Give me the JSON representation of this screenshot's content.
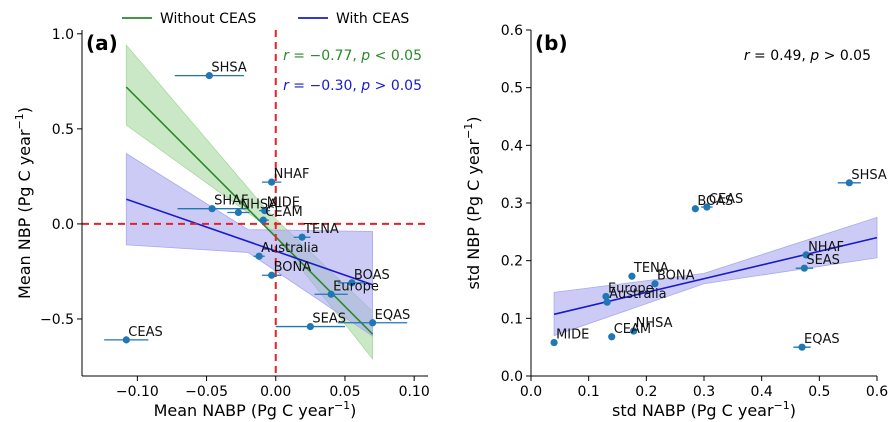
{
  "legend": {
    "items": [
      {
        "label": "Without CEAS",
        "color": "#2a8a2a"
      },
      {
        "label": "With CEAS",
        "color": "#1a1acc"
      }
    ]
  },
  "colors": {
    "point": "#1f77b4",
    "green_line": "#2a8a2a",
    "green_band": "#a8d8a0",
    "blue_line": "#1a1acc",
    "blue_band": "#a9a9f0",
    "zero_line": "#e8202a"
  },
  "chart_data": [
    {
      "type": "scatter",
      "panel_label": "(a)",
      "xlabel": "Mean NABP (Pg C year$^{-1}$)",
      "xlabel_parts": {
        "main": "Mean NABP (Pg C year",
        "sup": "−1",
        "close": ")"
      },
      "ylabel_parts": {
        "main": "Mean NBP (Pg C year",
        "sup": "−1",
        "close": ")"
      },
      "xlim": [
        -0.14,
        0.11
      ],
      "ylim": [
        -0.8,
        1.02
      ],
      "xticks": [
        -0.1,
        -0.05,
        0.0,
        0.05,
        0.1
      ],
      "xtick_labels": [
        "−0.10",
        "−0.05",
        "0.00",
        "0.05",
        "0.10"
      ],
      "yticks": [
        -0.5,
        0.0,
        0.5,
        1.0
      ],
      "ytick_labels": [
        "−0.5",
        "0.0",
        "0.5",
        "1.0"
      ],
      "annotations": [
        {
          "text_r": "r",
          "text": " = −0.77, ",
          "text_p": "p",
          "text2": " < 0.05",
          "color": "#2a8a2a"
        },
        {
          "text_r": "r",
          "text": " = −0.30, ",
          "text_p": "p",
          "text2": " > 0.05",
          "color": "#1a1acc"
        }
      ],
      "points": [
        {
          "label": "SHSA",
          "x": -0.048,
          "y": 0.78,
          "xerr": 0.025
        },
        {
          "label": "NHAF",
          "x": -0.003,
          "y": 0.22,
          "xerr": 0.007
        },
        {
          "label": "SHAF",
          "x": -0.046,
          "y": 0.08,
          "xerr": 0.025
        },
        {
          "label": "MIDE",
          "x": -0.008,
          "y": 0.07,
          "xerr": 0.004
        },
        {
          "label": "NHSA",
          "x": -0.027,
          "y": 0.06,
          "xerr": 0.008
        },
        {
          "label": "CEAM",
          "x": -0.009,
          "y": 0.02,
          "xerr": 0.004
        },
        {
          "label": "TENA",
          "x": 0.019,
          "y": -0.07,
          "xerr": 0.006
        },
        {
          "label": "Australia",
          "x": -0.012,
          "y": -0.17,
          "xerr": 0.004
        },
        {
          "label": "BONA",
          "x": -0.003,
          "y": -0.27,
          "xerr": 0.007
        },
        {
          "label": "BOAS",
          "x": 0.055,
          "y": -0.31,
          "xerr": 0.01
        },
        {
          "label": "Europe",
          "x": 0.04,
          "y": -0.37,
          "xerr": 0.012
        },
        {
          "label": "SEAS",
          "x": 0.025,
          "y": -0.54,
          "xerr": 0.025
        },
        {
          "label": "EQAS",
          "x": 0.07,
          "y": -0.52,
          "xerr": 0.025
        },
        {
          "label": "CEAS",
          "x": -0.108,
          "y": -0.61,
          "xerr": 0.016
        }
      ],
      "fit_without_ceas": {
        "x": [
          -0.108,
          0.07
        ],
        "y": [
          0.72,
          -0.58
        ],
        "band_upper": [
          0.94,
          -0.46
        ],
        "band_lower": [
          0.52,
          -0.71
        ],
        "band_mid_x": -0.005,
        "band_mid": [
          0.06,
          -0.02
        ]
      },
      "fit_with_ceas": {
        "x": [
          -0.108,
          0.07
        ],
        "y": [
          0.13,
          -0.32
        ],
        "band_upper": [
          0.37,
          -0.04
        ],
        "band_lower": [
          -0.11,
          -0.59
        ],
        "band_mid_x": -0.02,
        "band_mid": [
          -0.03,
          -0.15
        ]
      }
    },
    {
      "type": "scatter",
      "panel_label": "(b)",
      "xlabel_parts": {
        "main": "std NABP (Pg C year",
        "sup": "−1",
        "close": ")"
      },
      "ylabel_parts": {
        "main": "std NBP (Pg C year",
        "sup": "−1",
        "close": ")"
      },
      "xlim": [
        0.0,
        0.6
      ],
      "ylim": [
        0.0,
        0.6
      ],
      "xticks": [
        0.0,
        0.1,
        0.2,
        0.3,
        0.4,
        0.5,
        0.6
      ],
      "xtick_labels": [
        "0.0",
        "0.1",
        "0.2",
        "0.3",
        "0.4",
        "0.5",
        "0.6"
      ],
      "yticks": [
        0.0,
        0.1,
        0.2,
        0.3,
        0.4,
        0.5,
        0.6
      ],
      "ytick_labels": [
        "0.0",
        "0.1",
        "0.2",
        "0.3",
        "0.4",
        "0.5",
        "0.6"
      ],
      "annotations": [
        {
          "text_r": "r",
          "text": " = 0.49, ",
          "text_p": "p",
          "text2": " > 0.05",
          "color": "#000000"
        }
      ],
      "points": [
        {
          "label": "SHSA",
          "x": 0.552,
          "y": 0.335,
          "xerr": 0.02
        },
        {
          "label": "BOAS",
          "x": 0.285,
          "y": 0.29,
          "xerr": 0.005
        },
        {
          "label": "CEAS",
          "x": 0.305,
          "y": 0.293,
          "xerr": 0.01
        },
        {
          "label": "NHAF",
          "x": 0.477,
          "y": 0.21,
          "xerr": 0.005
        },
        {
          "label": "SEAS",
          "x": 0.474,
          "y": 0.187,
          "xerr": 0.015
        },
        {
          "label": "TENA",
          "x": 0.175,
          "y": 0.173,
          "xerr": 0.004
        },
        {
          "label": "BONA",
          "x": 0.215,
          "y": 0.16,
          "xerr": 0.004
        },
        {
          "label": "Europe",
          "x": 0.13,
          "y": 0.138,
          "xerr": 0.005
        },
        {
          "label": "Australia",
          "x": 0.132,
          "y": 0.128,
          "xerr": 0.004
        },
        {
          "label": "NHSA",
          "x": 0.178,
          "y": 0.078,
          "xerr": 0.004
        },
        {
          "label": "CEAM",
          "x": 0.14,
          "y": 0.068,
          "xerr": 0.004
        },
        {
          "label": "MIDE",
          "x": 0.04,
          "y": 0.058,
          "xerr": 0.003
        },
        {
          "label": "EQAS",
          "x": 0.47,
          "y": 0.05,
          "xerr": 0.015
        }
      ],
      "fit": {
        "x": [
          0.04,
          0.6
        ],
        "y": [
          0.107,
          0.24
        ],
        "band_upper": [
          0.145,
          0.275
        ],
        "band_lower": [
          0.07,
          0.205
        ],
        "band_mid_x": 0.3,
        "band_mid": [
          0.178,
          0.16
        ]
      }
    }
  ]
}
